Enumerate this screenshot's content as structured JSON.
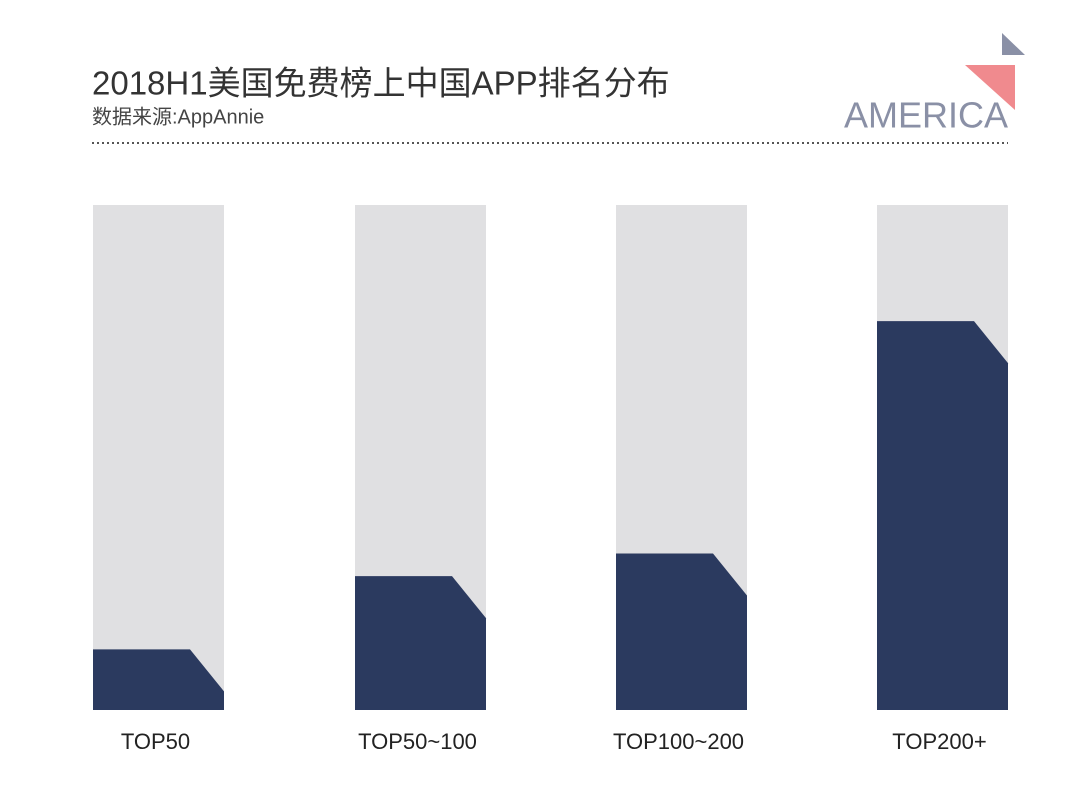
{
  "chart_data": {
    "type": "bar",
    "title": "2018H1美国免费榜上中国APP排名分布",
    "subtitle": "数据来源:AppAnnie",
    "brand": "AMERICA",
    "categories": [
      "TOP50",
      "TOP50~100",
      "TOP100~200",
      "TOP200+"
    ],
    "values": [
      12,
      26.5,
      31,
      77
    ],
    "ylim": [
      0,
      100
    ],
    "color": "#2b3a5f",
    "track_color": "#e0e0e2"
  }
}
